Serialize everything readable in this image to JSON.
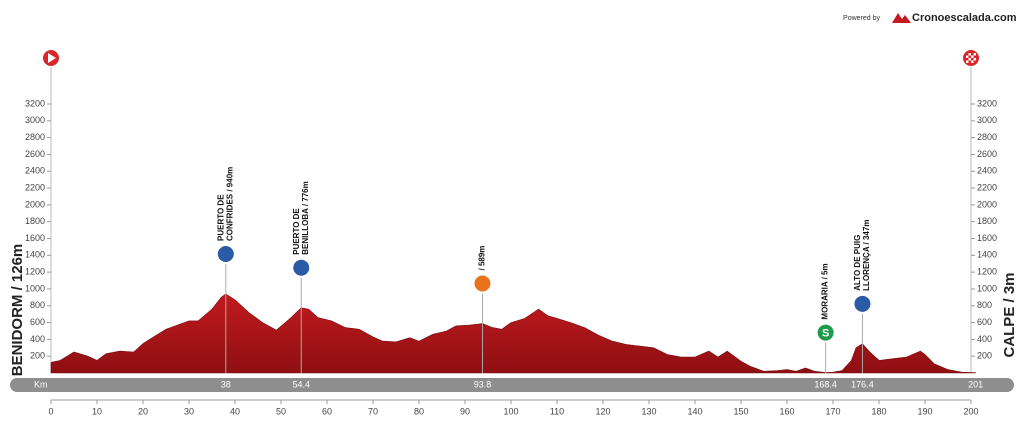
{
  "chart_data": {
    "type": "elevation-profile",
    "powered_by": "Powered by",
    "brand": "Cronoescalada.com",
    "start_label": "BENIDORM / 126m",
    "finish_label": "CALPE / 3m",
    "km_label": "Km",
    "color": "#c21a1e",
    "xlim": [
      0,
      201
    ],
    "xticks": [
      0,
      10,
      20,
      30,
      40,
      50,
      60,
      70,
      80,
      90,
      100,
      110,
      120,
      130,
      140,
      150,
      160,
      170,
      180,
      190,
      200
    ],
    "ylim": [
      0,
      3200
    ],
    "yticks": [
      200,
      400,
      600,
      800,
      1000,
      1200,
      1400,
      1600,
      1800,
      2000,
      2200,
      2400,
      2600,
      2800,
      3000,
      3200
    ],
    "x": [
      0,
      2,
      5,
      8,
      10,
      12,
      15,
      18,
      20,
      22,
      25,
      27,
      30,
      32,
      35,
      37,
      38,
      40,
      43,
      46,
      49,
      52,
      54.4,
      56,
      58,
      61,
      64,
      67,
      70,
      72,
      75,
      78,
      80,
      83,
      86,
      88,
      91,
      93.8,
      96,
      98,
      100,
      103,
      106,
      108,
      110,
      113,
      116,
      119,
      122,
      125,
      128,
      131,
      134,
      137,
      140,
      143,
      145,
      147,
      150,
      152,
      155,
      158,
      160,
      162,
      164,
      166,
      168.4,
      170,
      172,
      174,
      175,
      176.4,
      178,
      180,
      183,
      186,
      189,
      190,
      192,
      195,
      198,
      201
    ],
    "values": [
      126,
      150,
      250,
      200,
      150,
      230,
      260,
      250,
      350,
      420,
      520,
      560,
      620,
      620,
      760,
      900,
      940,
      870,
      720,
      600,
      510,
      650,
      776,
      760,
      660,
      620,
      540,
      520,
      430,
      380,
      370,
      420,
      380,
      460,
      500,
      560,
      570,
      589,
      540,
      520,
      600,
      650,
      760,
      680,
      650,
      600,
      540,
      450,
      380,
      340,
      320,
      300,
      220,
      190,
      190,
      260,
      190,
      260,
      140,
      80,
      20,
      30,
      40,
      20,
      60,
      20,
      5,
      10,
      30,
      150,
      300,
      347,
      250,
      150,
      170,
      190,
      260,
      220,
      110,
      40,
      10,
      3
    ],
    "markers": [
      {
        "lines": [
          "PUERTO DE",
          "CONFRIDES / 940m"
        ],
        "km": 38,
        "elevation": 940,
        "color": "#2b5aa6"
      },
      {
        "lines": [
          "PUERTO DE",
          "BENILLOBA / 776m"
        ],
        "km": 54.4,
        "elevation": 776,
        "color": "#2b5aa6"
      },
      {
        "lines": [
          "/ 589m"
        ],
        "km": 93.8,
        "elevation": 589,
        "color": "#e8731c"
      },
      {
        "lines": [
          "MORARIA / 5m"
        ],
        "km": 168.4,
        "elevation": 5,
        "color": "#1f9a4a",
        "icon": "S"
      },
      {
        "lines": [
          "ALTO DE PUIG",
          "LLORENÇA / 347m"
        ],
        "km": 176.4,
        "elevation": 347,
        "color": "#2b5aa6"
      }
    ]
  }
}
